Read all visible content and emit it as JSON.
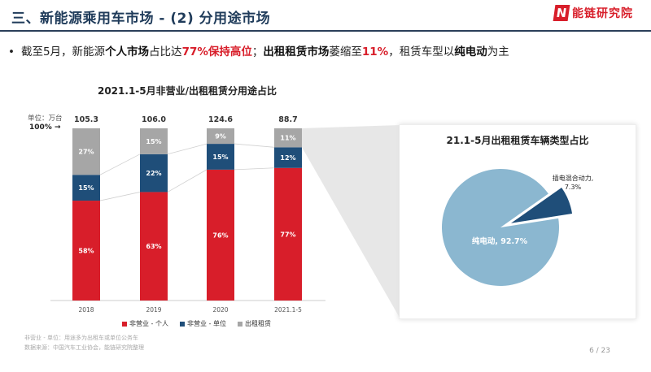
{
  "header": {
    "title": "三、新能源乘用车市场 - (2) 分用途市场",
    "logo_mark": "N",
    "logo_text": "能链研究院"
  },
  "bullet": {
    "dot": "•",
    "parts": [
      {
        "text": "截至5月，新能源",
        "style": "normal"
      },
      {
        "text": "个人市场",
        "style": "bold"
      },
      {
        "text": "占比达",
        "style": "normal"
      },
      {
        "text": "77%保持高位",
        "style": "hl"
      },
      {
        "text": "；",
        "style": "normal"
      },
      {
        "text": "出租租赁市场",
        "style": "bold"
      },
      {
        "text": "萎缩至",
        "style": "normal"
      },
      {
        "text": "11%",
        "style": "hl"
      },
      {
        "text": "，租赁车型以",
        "style": "normal"
      },
      {
        "text": "纯电动",
        "style": "bold"
      },
      {
        "text": "为主",
        "style": "normal"
      }
    ]
  },
  "bar_panel": {
    "unit_label": "单位：万台",
    "hundred_label": "100% →"
  },
  "colors": {
    "personal": "#d81e2a",
    "unit": "#1f4e79",
    "rental": "#a6a6a6",
    "pie_main": "#8bb7d0",
    "pie_small": "#1f4e79"
  },
  "chart_data": [
    {
      "type": "bar",
      "stacked": "percent",
      "title": "2021.1-5月非营业/出租租赁分用途占比",
      "categories": [
        "2018",
        "2019",
        "2020",
        "2021.1-5"
      ],
      "totals": [
        "105.3",
        "106.0",
        "124.6",
        "88.7"
      ],
      "series": [
        {
          "name": "非营业 - 个人",
          "values": [
            58,
            63,
            76,
            77
          ],
          "labels": [
            "58%",
            "63%",
            "76%",
            "77%"
          ],
          "color": "#d81e2a"
        },
        {
          "name": "非营业 - 单位",
          "values": [
            15,
            22,
            15,
            12
          ],
          "labels": [
            "15%",
            "22%",
            "15%",
            "12%"
          ],
          "color": "#1f4e79"
        },
        {
          "name": "出租租赁",
          "values": [
            27,
            15,
            9,
            11
          ],
          "labels": [
            "27%",
            "15%",
            "9%",
            "11%"
          ],
          "color": "#a6a6a6"
        }
      ],
      "ylim": [
        0,
        100
      ]
    },
    {
      "type": "pie",
      "title": "21.1-5月出租租赁车辆类型占比",
      "slices": [
        {
          "name": "纯电动",
          "value": 92.7,
          "label": "纯电动, 92.7%",
          "color": "#8bb7d0"
        },
        {
          "name": "插电混合动力",
          "value": 7.3,
          "label": "插电混合动力,\n7.3%",
          "color": "#1f4e79"
        }
      ]
    }
  ],
  "footnotes": [
    "非营业 - 单位：用途多为出租车或单位公务车",
    "数据来源：中国汽车工业协会，能链研究院整理"
  ],
  "page_number": "6 / 23"
}
